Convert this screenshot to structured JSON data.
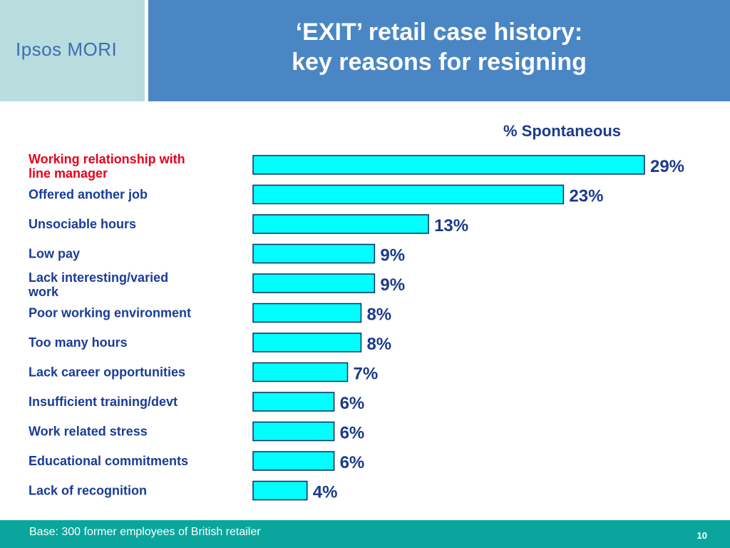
{
  "logo": {
    "text": "Ipsos MORI"
  },
  "title": {
    "line1": "‘EXIT’ retail case history:",
    "line2": "key reasons for resigning"
  },
  "footer": {
    "base": "Base: 300 former employees of British retailer",
    "page": "10"
  },
  "colors": {
    "bar": "#00ffff",
    "bar_border": "#0a2a66",
    "value_text": "#1b3a8c",
    "label_text": "#1a3c96",
    "highlight_label": "#e8001c",
    "title_bg": "#4a86c4",
    "logo_bg": "#b9dcdf",
    "footer_bg": "#0aa69e"
  },
  "chart_data": {
    "type": "bar",
    "orientation": "horizontal",
    "series_label": "% Spontaneous",
    "categories": [
      [
        "Working relationship with",
        "line manager"
      ],
      [
        "Offered another job"
      ],
      [
        "Unsociable hours"
      ],
      [
        "Low pay"
      ],
      [
        "Lack interesting/varied",
        "work"
      ],
      [
        "Poor working environment"
      ],
      [
        "Too many hours"
      ],
      [
        "Lack career opportunities"
      ],
      [
        "Insufficient training/devt"
      ],
      [
        "Work related stress"
      ],
      [
        "Educational commitments"
      ],
      [
        "Lack of recognition"
      ]
    ],
    "values": [
      29,
      23,
      13,
      9,
      9,
      8,
      8,
      7,
      6,
      6,
      6,
      4
    ],
    "value_labels": [
      "29%",
      "23%",
      "13%",
      "9%",
      "9%",
      "8%",
      "8%",
      "7%",
      "6%",
      "6%",
      "6%",
      "4%"
    ],
    "highlighted": [
      true,
      false,
      false,
      false,
      false,
      false,
      false,
      false,
      false,
      false,
      false,
      false
    ],
    "grid": false
  }
}
